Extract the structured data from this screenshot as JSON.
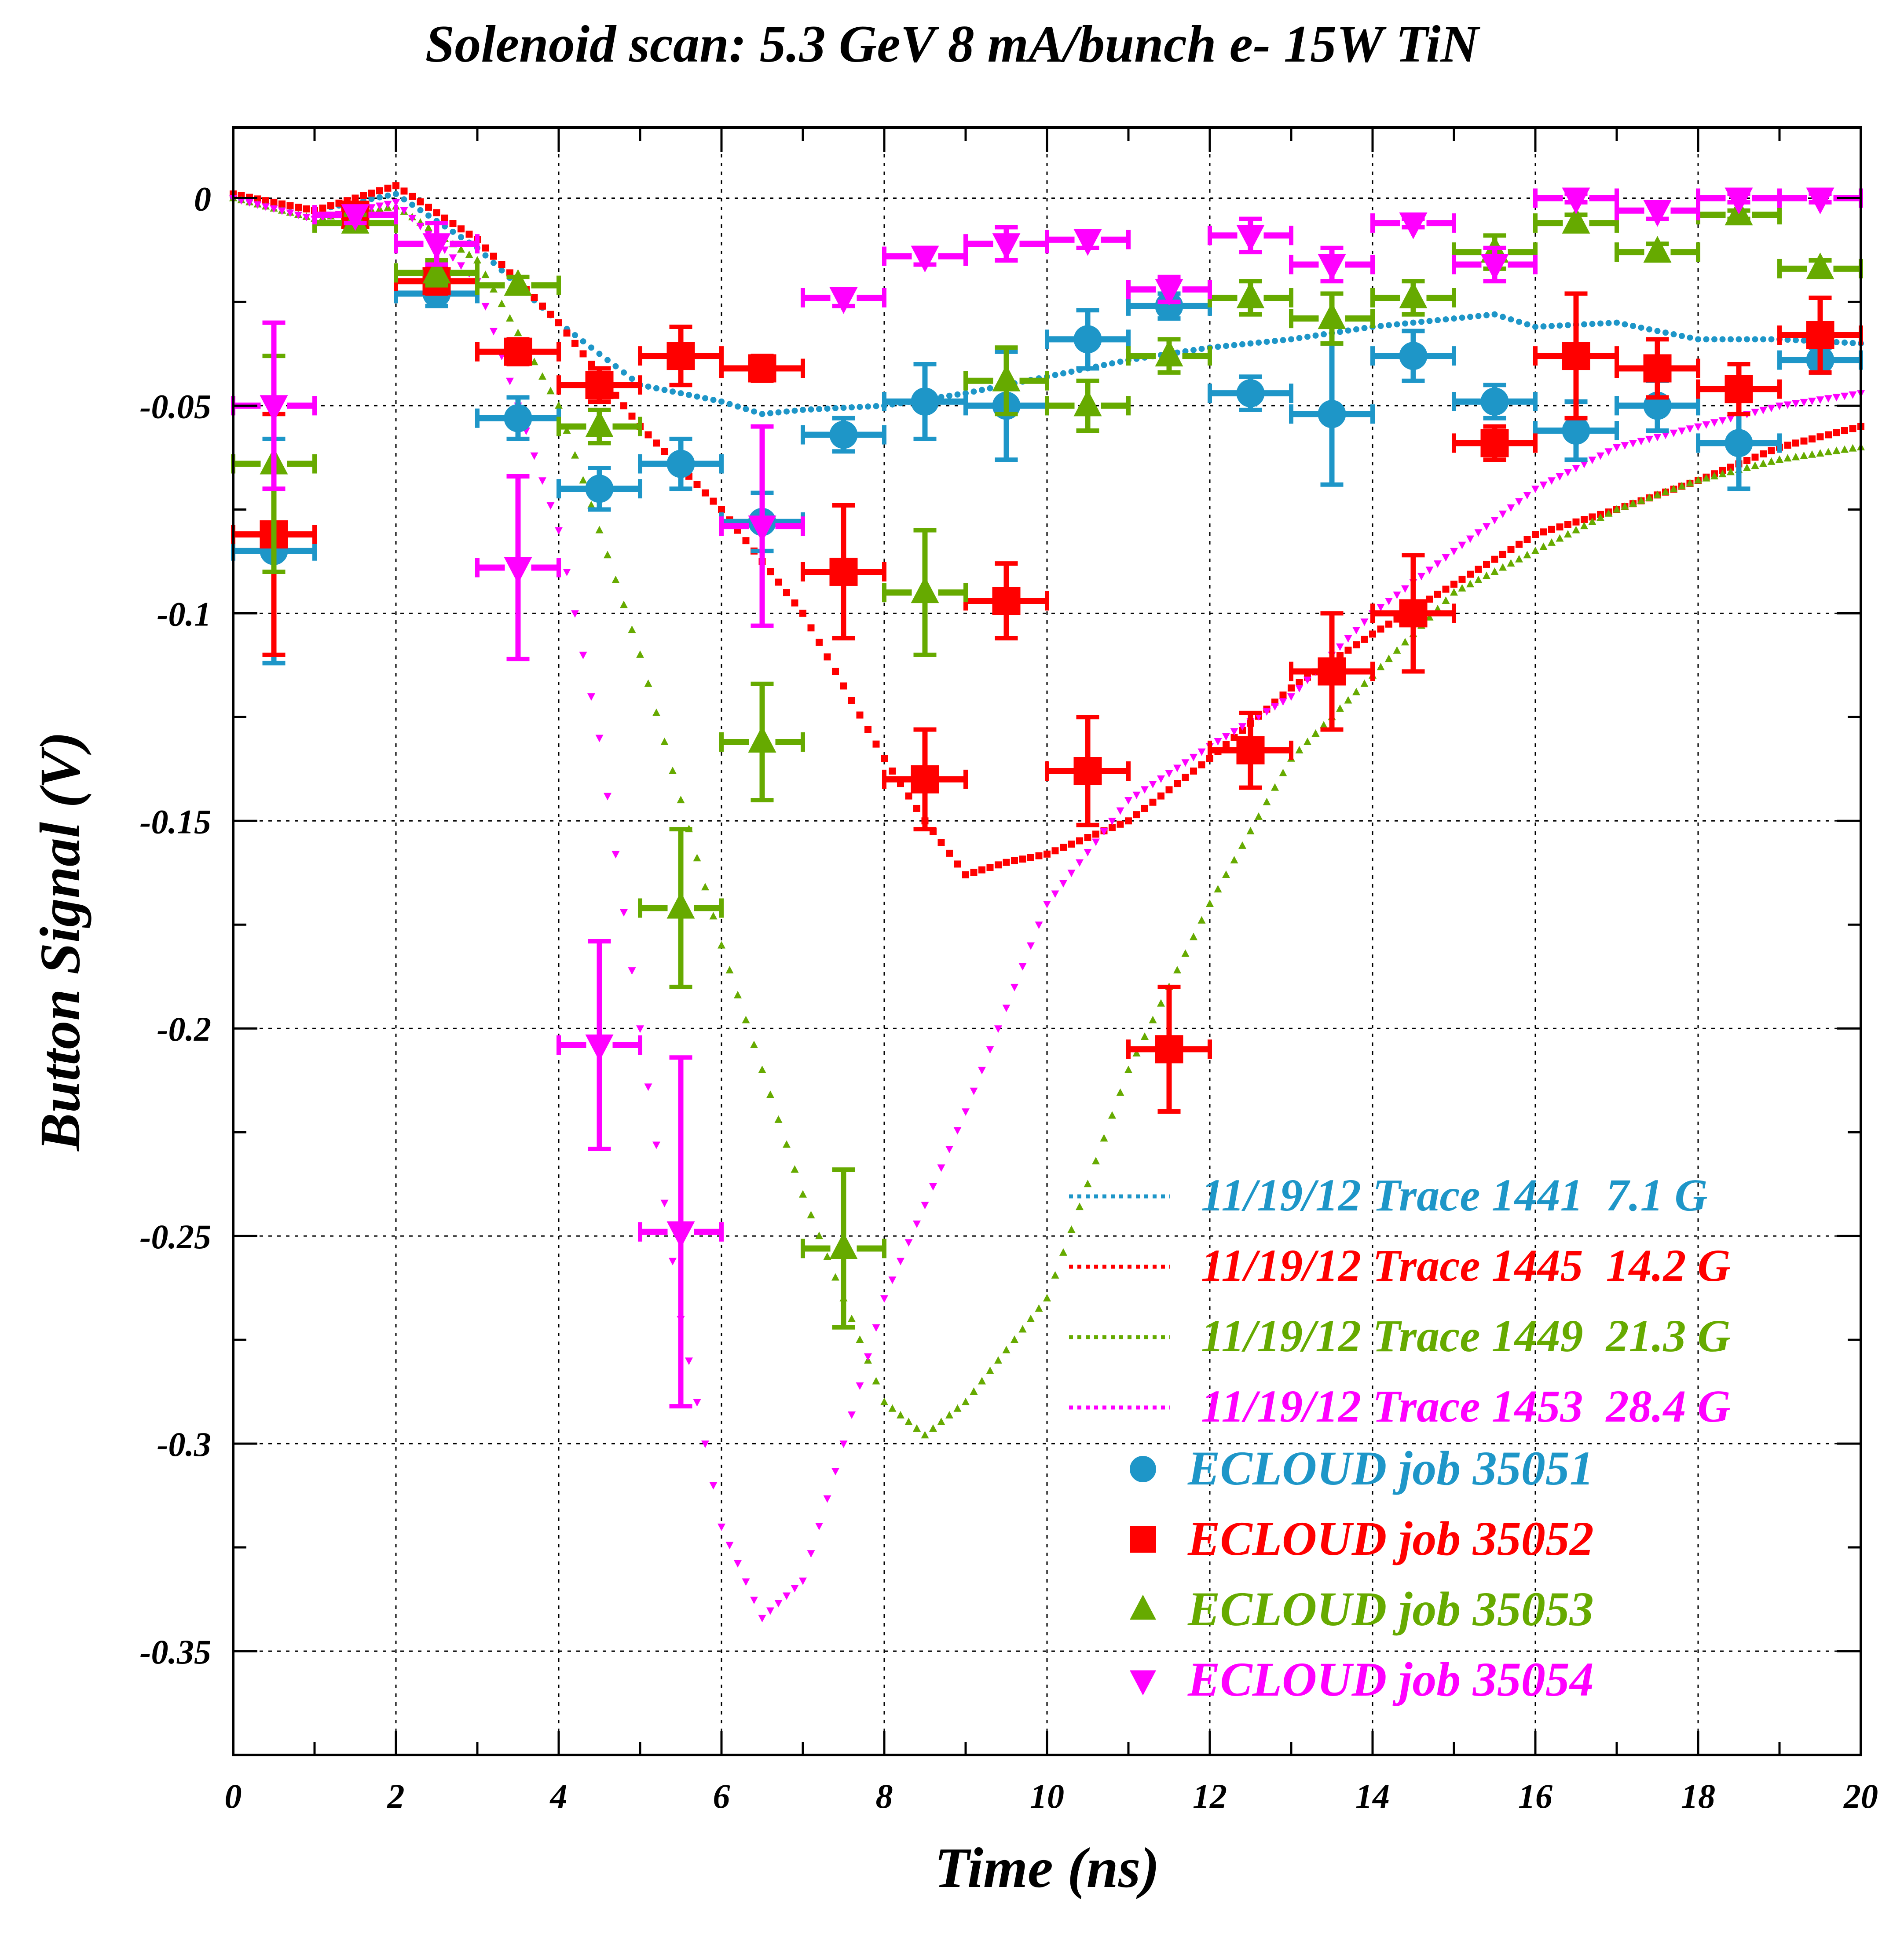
{
  "chart_data": {
    "type": "scatter",
    "title": "Solenoid scan: 5.3 GeV 8 mA/bunch e- 15W TiN",
    "xlabel": "Time (ns)",
    "ylabel": "Button Signal (V)",
    "xlim": [
      0,
      20
    ],
    "ylim": [
      -0.375,
      0.017
    ],
    "x_ticks": [
      0,
      2,
      4,
      6,
      8,
      10,
      12,
      14,
      16,
      18,
      20
    ],
    "y_ticks": [
      0,
      -0.05,
      -0.1,
      -0.15,
      -0.2,
      -0.25,
      -0.3,
      -0.35
    ],
    "x_tick_labels": [
      "0",
      "2",
      "4",
      "6",
      "8",
      "10",
      "12",
      "14",
      "16",
      "18",
      "20"
    ],
    "y_tick_labels": [
      "0",
      "-0.05",
      "-0.1",
      "-0.15",
      "-0.2",
      "-0.25",
      "-0.3",
      "-0.35"
    ],
    "grid": true,
    "legend_position": "bottom-right",
    "traces": [
      {
        "name": "11/19/12 Trace 1441  7.1 G",
        "color": "#1e96c8",
        "style": "dotted",
        "points": [
          [
            0,
            0
          ],
          [
            1,
            -0.003
          ],
          [
            2,
            0.001
          ],
          [
            3,
            -0.012
          ],
          [
            4,
            -0.03
          ],
          [
            5,
            -0.045
          ],
          [
            6,
            -0.049
          ],
          [
            6.5,
            -0.052
          ],
          [
            7,
            -0.051
          ],
          [
            8,
            -0.05
          ],
          [
            9,
            -0.047
          ],
          [
            10,
            -0.043
          ],
          [
            11,
            -0.039
          ],
          [
            12,
            -0.036
          ],
          [
            13,
            -0.034
          ],
          [
            14,
            -0.031
          ],
          [
            15,
            -0.029
          ],
          [
            15.5,
            -0.028
          ],
          [
            16,
            -0.031
          ],
          [
            17,
            -0.03
          ],
          [
            18,
            -0.034
          ],
          [
            19,
            -0.034
          ],
          [
            20,
            -0.035
          ]
        ]
      },
      {
        "name": "11/19/12 Trace 1445  14.2 G",
        "color": "#ff0000",
        "style": "dotted",
        "points": [
          [
            0,
            0.001
          ],
          [
            1,
            -0.003
          ],
          [
            2,
            0.003
          ],
          [
            3,
            -0.01
          ],
          [
            4,
            -0.03
          ],
          [
            5,
            -0.055
          ],
          [
            6,
            -0.075
          ],
          [
            7,
            -0.1
          ],
          [
            8,
            -0.135
          ],
          [
            8.5,
            -0.15
          ],
          [
            9,
            -0.163
          ],
          [
            9.5,
            -0.16
          ],
          [
            10,
            -0.158
          ],
          [
            11,
            -0.15
          ],
          [
            12,
            -0.135
          ],
          [
            13,
            -0.118
          ],
          [
            14,
            -0.105
          ],
          [
            15,
            -0.093
          ],
          [
            16,
            -0.081
          ],
          [
            17,
            -0.075
          ],
          [
            18,
            -0.068
          ],
          [
            19,
            -0.06
          ],
          [
            20,
            -0.055
          ]
        ]
      },
      {
        "name": "11/19/12 Trace 1449  21.3 G",
        "color": "#66aa00",
        "style": "dotted",
        "points": [
          [
            0,
            0
          ],
          [
            1,
            -0.005
          ],
          [
            2,
            -0.002
          ],
          [
            3,
            -0.015
          ],
          [
            4,
            -0.05
          ],
          [
            5,
            -0.11
          ],
          [
            6,
            -0.18
          ],
          [
            7,
            -0.24
          ],
          [
            8,
            -0.29
          ],
          [
            8.5,
            -0.298
          ],
          [
            9,
            -0.29
          ],
          [
            10,
            -0.265
          ],
          [
            11,
            -0.21
          ],
          [
            12,
            -0.17
          ],
          [
            13,
            -0.135
          ],
          [
            14,
            -0.115
          ],
          [
            15,
            -0.095
          ],
          [
            16,
            -0.085
          ],
          [
            17,
            -0.075
          ],
          [
            18,
            -0.068
          ],
          [
            19,
            -0.063
          ],
          [
            20,
            -0.06
          ]
        ]
      },
      {
        "name": "11/19/12 Trace 1453  28.4 G",
        "color": "#ff00ff",
        "style": "dotted",
        "points": [
          [
            0,
            0
          ],
          [
            1,
            -0.005
          ],
          [
            2,
            -0.001
          ],
          [
            3,
            -0.02
          ],
          [
            4,
            -0.08
          ],
          [
            4.5,
            -0.13
          ],
          [
            5,
            -0.2
          ],
          [
            5.5,
            -0.27
          ],
          [
            6,
            -0.32
          ],
          [
            6.5,
            -0.342
          ],
          [
            7,
            -0.333
          ],
          [
            7.5,
            -0.3
          ],
          [
            8,
            -0.265
          ],
          [
            9,
            -0.22
          ],
          [
            10,
            -0.17
          ],
          [
            11,
            -0.145
          ],
          [
            12,
            -0.132
          ],
          [
            13,
            -0.12
          ],
          [
            14,
            -0.1
          ],
          [
            15,
            -0.085
          ],
          [
            16,
            -0.07
          ],
          [
            17,
            -0.06
          ],
          [
            18,
            -0.055
          ],
          [
            19,
            -0.05
          ],
          [
            20,
            -0.047
          ]
        ]
      }
    ],
    "series": [
      {
        "name": "ECLOUD job 35051",
        "color": "#1e96c8",
        "marker": "circle",
        "points": [
          [
            0.5,
            -0.085,
            0.027
          ],
          [
            2.5,
            -0.023,
            0.003
          ],
          [
            3.5,
            -0.053,
            0.005
          ],
          [
            4.5,
            -0.07,
            0.005
          ],
          [
            5.5,
            -0.064,
            0.006
          ],
          [
            6.5,
            -0.078,
            0.007
          ],
          [
            7.5,
            -0.057,
            0.004
          ],
          [
            8.5,
            -0.049,
            0.009
          ],
          [
            9.5,
            -0.05,
            0.013
          ],
          [
            10.5,
            -0.034,
            0.007
          ],
          [
            11.5,
            -0.026,
            0.003
          ],
          [
            12.5,
            -0.047,
            0.004
          ],
          [
            13.5,
            -0.052,
            0.017
          ],
          [
            14.5,
            -0.038,
            0.006
          ],
          [
            15.5,
            -0.049,
            0.004
          ],
          [
            16.5,
            -0.056,
            0.007
          ],
          [
            17.5,
            -0.05,
            0.006
          ],
          [
            18.5,
            -0.059,
            0.011
          ],
          [
            19.5,
            -0.039,
            0.003
          ]
        ]
      },
      {
        "name": "ECLOUD job 35052",
        "color": "#ff0000",
        "marker": "square",
        "points": [
          [
            0.5,
            -0.081,
            0.029
          ],
          [
            1.5,
            -0.004,
            0.002
          ],
          [
            2.5,
            -0.02,
            0.003
          ],
          [
            3.5,
            -0.037,
            0.003
          ],
          [
            4.5,
            -0.045,
            0.004
          ],
          [
            5.5,
            -0.038,
            0.007
          ],
          [
            6.5,
            -0.041,
            0.003
          ],
          [
            7.5,
            -0.09,
            0.016
          ],
          [
            8.5,
            -0.14,
            0.012
          ],
          [
            9.5,
            -0.097,
            0.009
          ],
          [
            10.5,
            -0.138,
            0.013
          ],
          [
            11.5,
            -0.205,
            0.015
          ],
          [
            12.5,
            -0.133,
            0.009
          ],
          [
            13.5,
            -0.114,
            0.014
          ],
          [
            14.5,
            -0.1,
            0.014
          ],
          [
            15.5,
            -0.059,
            0.004
          ],
          [
            16.5,
            -0.038,
            0.015
          ],
          [
            17.5,
            -0.041,
            0.007
          ],
          [
            18.5,
            -0.046,
            0.006
          ],
          [
            19.5,
            -0.033,
            0.009
          ]
        ]
      },
      {
        "name": "ECLOUD job 35053",
        "color": "#66aa00",
        "marker": "triangle-up",
        "points": [
          [
            0.5,
            -0.064,
            0.026
          ],
          [
            1.5,
            -0.006,
            0.002
          ],
          [
            2.5,
            -0.018,
            0.003
          ],
          [
            3.5,
            -0.021,
            0.002
          ],
          [
            4.5,
            -0.055,
            0.004
          ],
          [
            5.5,
            -0.171,
            0.019
          ],
          [
            6.5,
            -0.131,
            0.014
          ],
          [
            7.5,
            -0.253,
            0.019
          ],
          [
            8.5,
            -0.095,
            0.015
          ],
          [
            9.5,
            -0.044,
            0.008
          ],
          [
            10.5,
            -0.05,
            0.006
          ],
          [
            11.5,
            -0.038,
            0.004
          ],
          [
            12.5,
            -0.024,
            0.004
          ],
          [
            13.5,
            -0.029,
            0.006
          ],
          [
            14.5,
            -0.024,
            0.004
          ],
          [
            15.5,
            -0.013,
            0.004
          ],
          [
            16.5,
            -0.006,
            0.002
          ],
          [
            17.5,
            -0.013,
            0.002
          ],
          [
            18.5,
            -0.004,
            0.001
          ],
          [
            19.5,
            -0.017,
            0.002
          ]
        ]
      },
      {
        "name": "ECLOUD job 35054",
        "color": "#ff00ff",
        "marker": "triangle-down",
        "points": [
          [
            0.5,
            -0.05,
            0.02
          ],
          [
            1.5,
            -0.004,
            0.002
          ],
          [
            2.5,
            -0.011,
            0.005
          ],
          [
            3.5,
            -0.089,
            0.022
          ],
          [
            4.5,
            -0.204,
            0.025
          ],
          [
            5.5,
            -0.249,
            0.042
          ],
          [
            6.5,
            -0.079,
            0.024
          ],
          [
            7.5,
            -0.024,
            0.002
          ],
          [
            8.5,
            -0.014,
            0.002
          ],
          [
            9.5,
            -0.011,
            0.004
          ],
          [
            10.5,
            -0.01,
            0.002
          ],
          [
            11.5,
            -0.022,
            0.003
          ],
          [
            12.5,
            -0.009,
            0.004
          ],
          [
            13.5,
            -0.016,
            0.004
          ],
          [
            14.5,
            -0.006,
            0.001
          ],
          [
            15.5,
            -0.016,
            0.004
          ],
          [
            16.5,
            0,
            0.001
          ],
          [
            17.5,
            -0.003,
            0.002
          ],
          [
            18.5,
            0,
            0.001
          ],
          [
            19.5,
            0,
            0.001
          ]
        ]
      }
    ]
  }
}
